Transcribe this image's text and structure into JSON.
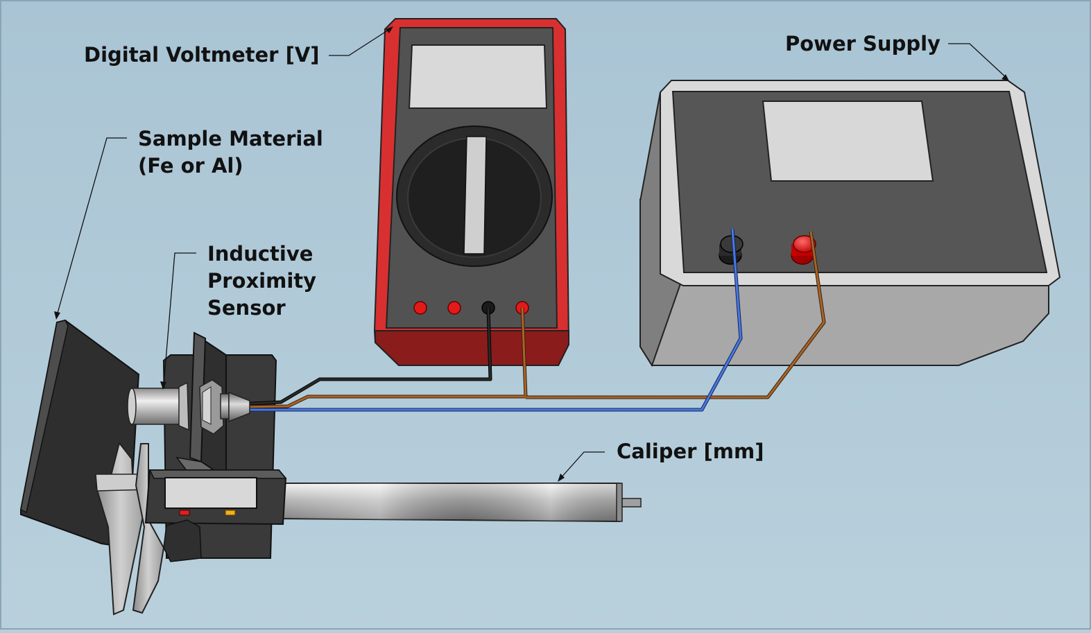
{
  "labels": {
    "voltmeter": "Digital Voltmeter [V]",
    "power_supply": "Power Supply",
    "sample_line1": "Sample Material",
    "sample_line2": "(Fe or Al)",
    "sensor_line1": "Inductive",
    "sensor_line2": "Proximity",
    "sensor_line3": "Sensor",
    "caliper": "Caliper [mm]"
  },
  "colors": {
    "background": "#b7cedb",
    "voltmeter_case": "#d42a2a",
    "voltmeter_face": "#4f4f4f",
    "power_supply_case": "#d6d6d6",
    "power_supply_top": "#555555",
    "wire_black": "#222222",
    "wire_brown": "#9a5a22",
    "wire_blue": "#3a63c7",
    "terminal_red": "#e41a1a"
  },
  "icons": {
    "voltmeter": "digital-multimeter-icon",
    "power_supply": "dc-power-supply-icon",
    "sensor": "inductive-sensor-icon",
    "caliper": "digital-caliper-icon",
    "sample": "metal-plate-icon"
  }
}
